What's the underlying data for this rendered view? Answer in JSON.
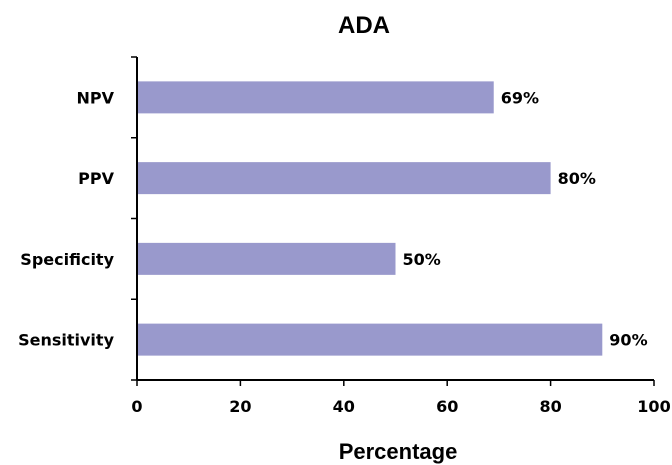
{
  "chart_data": {
    "type": "bar",
    "orientation": "horizontal",
    "title": "ADA",
    "xlabel": "Percentage",
    "ylabel": "",
    "categories": [
      "NPV",
      "PPV",
      "Specificity",
      "Sensitivity"
    ],
    "values": [
      69,
      80,
      50,
      90
    ],
    "data_labels": [
      "69%",
      "80%",
      "50%",
      "90%"
    ],
    "xlim": [
      0,
      100
    ],
    "x_ticks": [
      0,
      20,
      40,
      60,
      80,
      100
    ],
    "x_tick_labels": [
      "0",
      "20",
      "40",
      "60",
      "80",
      "100"
    ],
    "grid": false,
    "legend": "none",
    "bar_color": "#9999cc"
  }
}
